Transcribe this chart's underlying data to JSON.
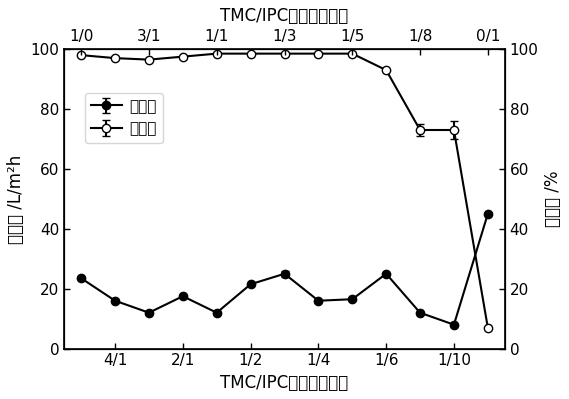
{
  "title_top": "TMC/IPC官能团摩尔比",
  "title_bottom": "TMC/IPC官能团摩尔比",
  "ylabel_left": "水通量 /L/m²h",
  "ylabel_right": "截留率 /%",
  "bottom_xtick_positions": [
    2,
    4,
    6,
    8,
    10,
    12
  ],
  "bottom_xtick_labels": [
    "4/1",
    "2/1",
    "1/2",
    "1/4",
    "1/6",
    "1/10"
  ],
  "top_xtick_positions": [
    1,
    3,
    5,
    7,
    9,
    11,
    13
  ],
  "top_xtick_labels": [
    "1/0",
    "3/1",
    "1/1",
    "1/3",
    "1/5",
    "1/8",
    "0/1"
  ],
  "x_positions": [
    1,
    2,
    3,
    4,
    5,
    6,
    7,
    8,
    9,
    10,
    11,
    12,
    13
  ],
  "flux_y": [
    23.5,
    16.0,
    12.0,
    17.5,
    12.0,
    21.5,
    25.0,
    16.0,
    16.5,
    25.0,
    12.0,
    8.0,
    45.0
  ],
  "flux_yerr": [
    0,
    0,
    0,
    0,
    0,
    0,
    1.0,
    0,
    0,
    0,
    0,
    0,
    0
  ],
  "rejection_y": [
    98.0,
    97.0,
    96.5,
    97.5,
    98.5,
    98.5,
    98.5,
    98.5,
    98.5,
    93.0,
    73.0,
    73.0,
    7.0
  ],
  "rejection_yerr": [
    0,
    0,
    0,
    0,
    0,
    0,
    0,
    0,
    0,
    0,
    2.0,
    3.0,
    0
  ],
  "ylim_left": [
    0,
    100
  ],
  "ylim_right": [
    0,
    100
  ],
  "yticks": [
    0,
    20,
    40,
    60,
    80,
    100
  ],
  "xlim": [
    0.5,
    13.5
  ],
  "legend_flux": "水通量",
  "legend_rejection": "截留率",
  "fontsize": 11,
  "label_fontsize": 12,
  "title_fontsize": 12
}
